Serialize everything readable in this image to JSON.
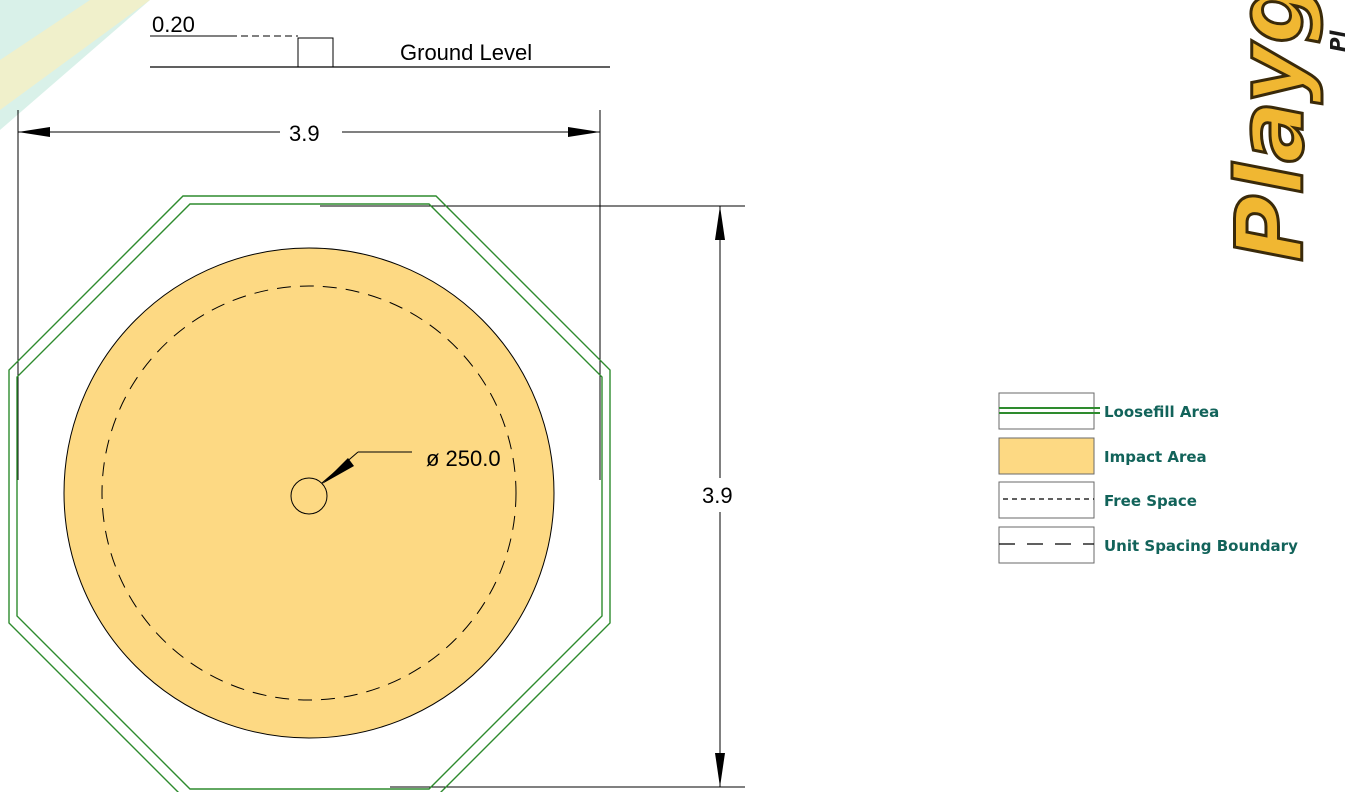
{
  "elevation": {
    "depth_label": "0.20",
    "ground_label": "Ground Level"
  },
  "dimensions": {
    "width_label": "3.9",
    "height_label": "3.9",
    "post_diameter_label": "ø 250.0"
  },
  "legend": {
    "items": [
      {
        "key": "loosefill",
        "label": "Loosefill Area"
      },
      {
        "key": "impact",
        "label": "Impact Area"
      },
      {
        "key": "free",
        "label": "Free Space"
      },
      {
        "key": "unit",
        "label": "Unit Spacing Boundary"
      }
    ]
  },
  "logo": {
    "text": "Playg",
    "subtext": "Pl"
  },
  "colors": {
    "loosefill_line": "#2e8b2e",
    "impact_fill": "#fdd983",
    "legend_text": "#12635a",
    "logo_fill": "#f0b732",
    "logo_stroke": "#3a2a0a",
    "corner_accent": "#cfeee4"
  }
}
